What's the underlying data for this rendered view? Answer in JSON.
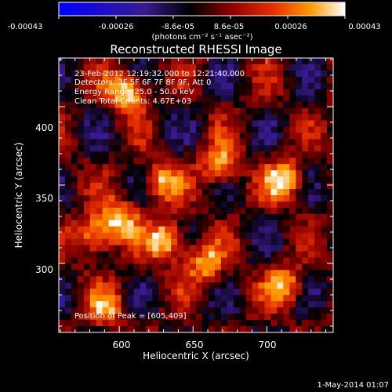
{
  "colorbar": {
    "tick_labels": [
      "-0.00043",
      "-0.00026",
      "-8.6e-05",
      "8.6e-05",
      "0.00026",
      "0.00043"
    ],
    "unit_label": "(photons cm⁻² s⁻¹ asec⁻²)",
    "range": [
      -0.00043,
      0.00043
    ],
    "colors": [
      "#0000ff",
      "#3a1a8f",
      "#000000",
      "#8c0000",
      "#e63000",
      "#ff9a00",
      "#ffffff"
    ]
  },
  "chart_data": {
    "type": "heatmap",
    "title": "Reconstructed RHESSI Image",
    "xlabel": "Heliocentric X (arcsec)",
    "ylabel": "Heliocentric Y (arcsec)",
    "xlim": [
      559,
      745
    ],
    "ylim": [
      256,
      431
    ],
    "x_ticks": [
      600,
      650,
      700
    ],
    "y_ticks": [
      300,
      350,
      400
    ],
    "annotations": [
      "23-Feb-2012 12:19:32.000 to 12:21:40.000",
      "Detectors: 3F 5F 6F 7F 8F 9F, Att 0",
      "Energy Range: 25.0 - 50.0 keV",
      "Clean    Total Counts: 4.67E+03"
    ],
    "peak_label": "Position of Peak = [605,409]",
    "peak_position": [
      605,
      409
    ],
    "bright_sources": [
      {
        "x": 605,
        "y": 409,
        "intensity": 1.0
      },
      {
        "x": 632,
        "y": 314,
        "intensity": 0.95
      },
      {
        "x": 712,
        "y": 353,
        "intensity": 0.9
      },
      {
        "x": 668,
        "y": 363,
        "intensity": 0.8
      },
      {
        "x": 600,
        "y": 328,
        "intensity": 0.85
      },
      {
        "x": 583,
        "y": 318,
        "intensity": 0.85
      },
      {
        "x": 658,
        "y": 300,
        "intensity": 0.75
      },
      {
        "x": 628,
        "y": 352,
        "intensity": 0.7
      },
      {
        "x": 712,
        "y": 286,
        "intensity": 0.75
      },
      {
        "x": 592,
        "y": 272,
        "intensity": 0.6
      }
    ],
    "grid": false
  },
  "footer": {
    "date_stamp": "1-May-2014 01:07"
  }
}
